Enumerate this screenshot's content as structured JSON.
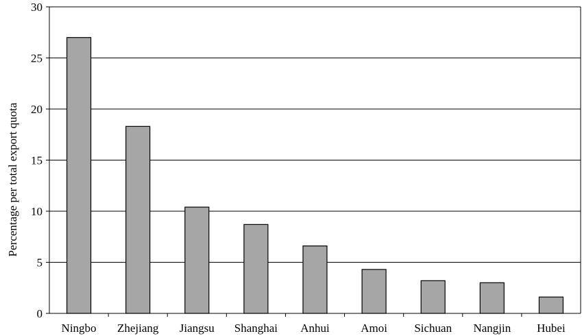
{
  "chart_data": {
    "type": "bar",
    "title": "",
    "xlabel": "",
    "ylabel": "Percentage per total export quota",
    "categories": [
      "Ningbo",
      "Zhejiang",
      "Jiangsu",
      "Shanghai",
      "Anhui",
      "Amoi",
      "Sichuan",
      "Nangjin",
      "Hubei"
    ],
    "values": [
      27.0,
      18.3,
      10.4,
      8.7,
      6.6,
      4.3,
      3.2,
      3.0,
      1.6
    ],
    "ylim": [
      0,
      30
    ],
    "yticks": [
      "0",
      "5",
      "10",
      "15",
      "20",
      "25",
      "30"
    ],
    "grid": true,
    "legend": "none",
    "colors": {
      "bar_fill": "#a6a6a6",
      "bar_stroke": "#000000",
      "grid": "#000000",
      "axis": "#000000"
    }
  }
}
